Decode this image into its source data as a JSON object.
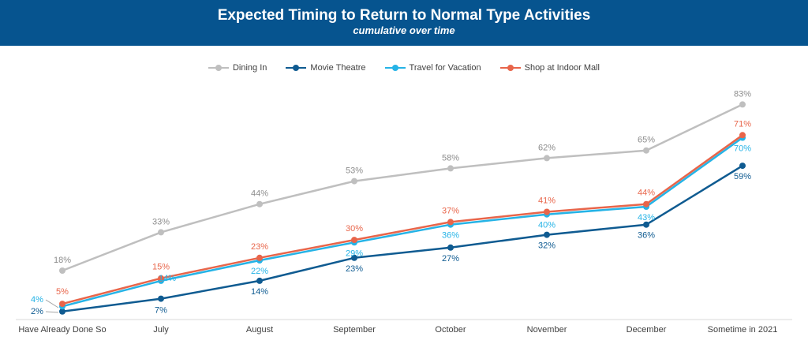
{
  "header": {
    "title": "Expected Timing to Return to Normal Type Activities",
    "subtitle": "cumulative over time"
  },
  "chart_data": {
    "type": "line",
    "title": "Expected Timing to Return to Normal Type Activities",
    "subtitle": "cumulative over time",
    "xlabel": "",
    "ylabel": "",
    "categories": [
      "Have Already Done So",
      "July",
      "August",
      "September",
      "October",
      "November",
      "December",
      "Sometime in 2021"
    ],
    "ylim": [
      0,
      90
    ],
    "grid": false,
    "legend_position": "top",
    "series": [
      {
        "name": "Dining In",
        "color": "#bfbfbf",
        "values": [
          18,
          33,
          44,
          53,
          58,
          62,
          65,
          83
        ],
        "labels": [
          "18%",
          "33%",
          "44%",
          "53%",
          "58%",
          "62%",
          "65%",
          "83%"
        ]
      },
      {
        "name": "Movie Theatre",
        "color": "#0f5b91",
        "values": [
          2,
          7,
          14,
          23,
          27,
          32,
          36,
          59
        ],
        "labels": [
          "2%",
          "7%",
          "14%",
          "23%",
          "27%",
          "32%",
          "36%",
          "59%"
        ]
      },
      {
        "name": "Travel for Vacation",
        "color": "#25b3e6",
        "values": [
          4,
          14,
          22,
          29,
          36,
          40,
          43,
          70
        ],
        "labels": [
          "4%",
          "14%",
          "22%",
          "29%",
          "36%",
          "40%",
          "43%",
          "70%"
        ]
      },
      {
        "name": "Shop at Indoor Mall",
        "color": "#e8654a",
        "values": [
          5,
          15,
          23,
          30,
          37,
          41,
          44,
          71
        ],
        "labels": [
          "5%",
          "15%",
          "23%",
          "30%",
          "37%",
          "41%",
          "44%",
          "71%"
        ]
      }
    ]
  }
}
